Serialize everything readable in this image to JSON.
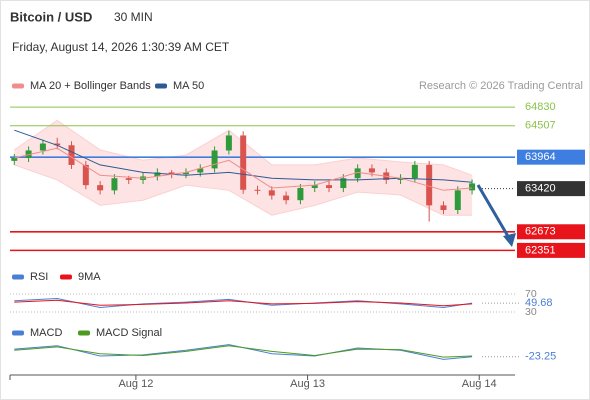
{
  "header": {
    "title": "Bitcoin / USD",
    "interval": "30 MIN",
    "date": "Friday, August 14, 2026 1:30:39 AM CET"
  },
  "source": "Research © 2026 Trading Central",
  "chart_data": [
    {
      "type": "candlestick",
      "xlim": [
        6.4,
        77
      ],
      "ylim": [
        62150,
        65040
      ],
      "candles": {
        "x": [
          7,
          9,
          11,
          13,
          15,
          17,
          19,
          21,
          23,
          25,
          27,
          29,
          31,
          33,
          35,
          37,
          39,
          41,
          43,
          45,
          47,
          49,
          51,
          53,
          55,
          57,
          59,
          61,
          63,
          65,
          67,
          69,
          71
        ],
        "open": [
          63900,
          63950,
          64080,
          64200,
          64170,
          63830,
          63480,
          63390,
          63600,
          63570,
          63630,
          63700,
          63670,
          63700,
          63770,
          64080,
          64340,
          63400,
          63390,
          63300,
          63220,
          63430,
          63480,
          63430,
          63600,
          63770,
          63700,
          63570,
          63600,
          63830,
          63130,
          63050,
          63390
        ],
        "high": [
          64020,
          64150,
          64270,
          64300,
          64240,
          63900,
          63550,
          63670,
          63640,
          63700,
          63770,
          63740,
          63770,
          63840,
          64150,
          64420,
          64410,
          63470,
          63460,
          63370,
          63500,
          63550,
          63550,
          63670,
          63840,
          63840,
          63770,
          63670,
          63900,
          63900,
          63200,
          63460,
          63580
        ],
        "low": [
          63830,
          63880,
          64010,
          64100,
          63760,
          63410,
          63320,
          63320,
          63500,
          63500,
          63560,
          63600,
          63600,
          63630,
          63700,
          64010,
          63330,
          63320,
          63230,
          63150,
          63150,
          63360,
          63360,
          63360,
          63530,
          63630,
          63500,
          63500,
          63530,
          62850,
          62980,
          62980,
          63320
        ],
        "close": [
          63950,
          64080,
          64200,
          64170,
          63830,
          63480,
          63390,
          63600,
          63570,
          63630,
          63700,
          63670,
          63700,
          63770,
          64080,
          64340,
          63400,
          63390,
          63300,
          63220,
          63430,
          63480,
          63430,
          63600,
          63770,
          63700,
          63570,
          63600,
          63830,
          63130,
          63050,
          63390,
          63510
        ],
        "up_color": "#2e9a3a",
        "down_color": "#d9534f"
      },
      "x": [
        7,
        13,
        19,
        25,
        31,
        37,
        43,
        49,
        55,
        61,
        67,
        71
      ],
      "series": [
        {
          "name": "MA 20 + Bollinger Bands",
          "color": "#f08c8c",
          "values": [
            63950,
            64120,
            63650,
            63600,
            63700,
            63910,
            63430,
            63480,
            63700,
            63600,
            63390,
            63430
          ],
          "upper": [
            64090,
            64600,
            64090,
            63910,
            64000,
            64430,
            63830,
            63830,
            63950,
            63880,
            63830,
            63650
          ],
          "lower": [
            63830,
            63570,
            63130,
            63220,
            63480,
            63390,
            62960,
            63130,
            63360,
            63310,
            62960,
            62960
          ]
        },
        {
          "name": "MA 50",
          "color": "#2c5a92",
          "values": [
            64430,
            64170,
            63830,
            63700,
            63650,
            63700,
            63600,
            63570,
            63570,
            63600,
            63570,
            63530
          ]
        }
      ],
      "levels": [
        {
          "value": 64830,
          "color": "#8bc34a",
          "boxed": false,
          "dotted": false
        },
        {
          "value": 64507,
          "color": "#8bc34a",
          "boxed": false,
          "dotted": false
        },
        {
          "value": 63964,
          "color": "#3d7ee0",
          "boxed": true,
          "dotted": false
        },
        {
          "value": 63420,
          "color": "#333333",
          "boxed": true,
          "dotted": true
        },
        {
          "value": 62673,
          "color": "#e8141c",
          "boxed": true,
          "dotted": false
        },
        {
          "value": 62351,
          "color": "#e8141c",
          "boxed": true,
          "dotted": false
        }
      ]
    },
    {
      "type": "line",
      "xlim": [
        6.4,
        77
      ],
      "ylim": [
        20,
        80
      ],
      "yticks": [
        70,
        30
      ],
      "x": [
        7,
        13,
        19,
        25,
        31,
        37,
        43,
        49,
        55,
        61,
        67,
        71
      ],
      "series": [
        {
          "name": "RSI",
          "color": "#4a7fd4",
          "values": [
            55,
            60,
            40,
            48,
            52,
            58,
            45,
            50,
            55,
            48,
            40,
            49.68
          ]
        },
        {
          "name": "9MA",
          "color": "#e8141c",
          "values": [
            52,
            56,
            45,
            47,
            50,
            55,
            48,
            49,
            53,
            50,
            44,
            48
          ]
        }
      ]
    },
    {
      "type": "line",
      "xlim": [
        6.4,
        77
      ],
      "ylim": [
        -90,
        50
      ],
      "x": [
        7,
        13,
        19,
        25,
        31,
        37,
        43,
        49,
        55,
        61,
        67,
        71
      ],
      "xticks": [
        {
          "value": 24,
          "label": "Aug 12"
        },
        {
          "value": 48,
          "label": "Aug 13"
        },
        {
          "value": 72,
          "label": "Aug 14"
        }
      ],
      "series": [
        {
          "name": "MACD",
          "color": "#4a7fd4",
          "values": [
            10,
            25,
            -20,
            -15,
            5,
            30,
            -10,
            -20,
            15,
            5,
            -35,
            -23.25
          ]
        },
        {
          "name": "MACD Signal",
          "color": "#4c9a1f",
          "values": [
            5,
            20,
            -10,
            -18,
            0,
            25,
            0,
            -18,
            10,
            8,
            -25,
            -20
          ]
        }
      ]
    }
  ]
}
